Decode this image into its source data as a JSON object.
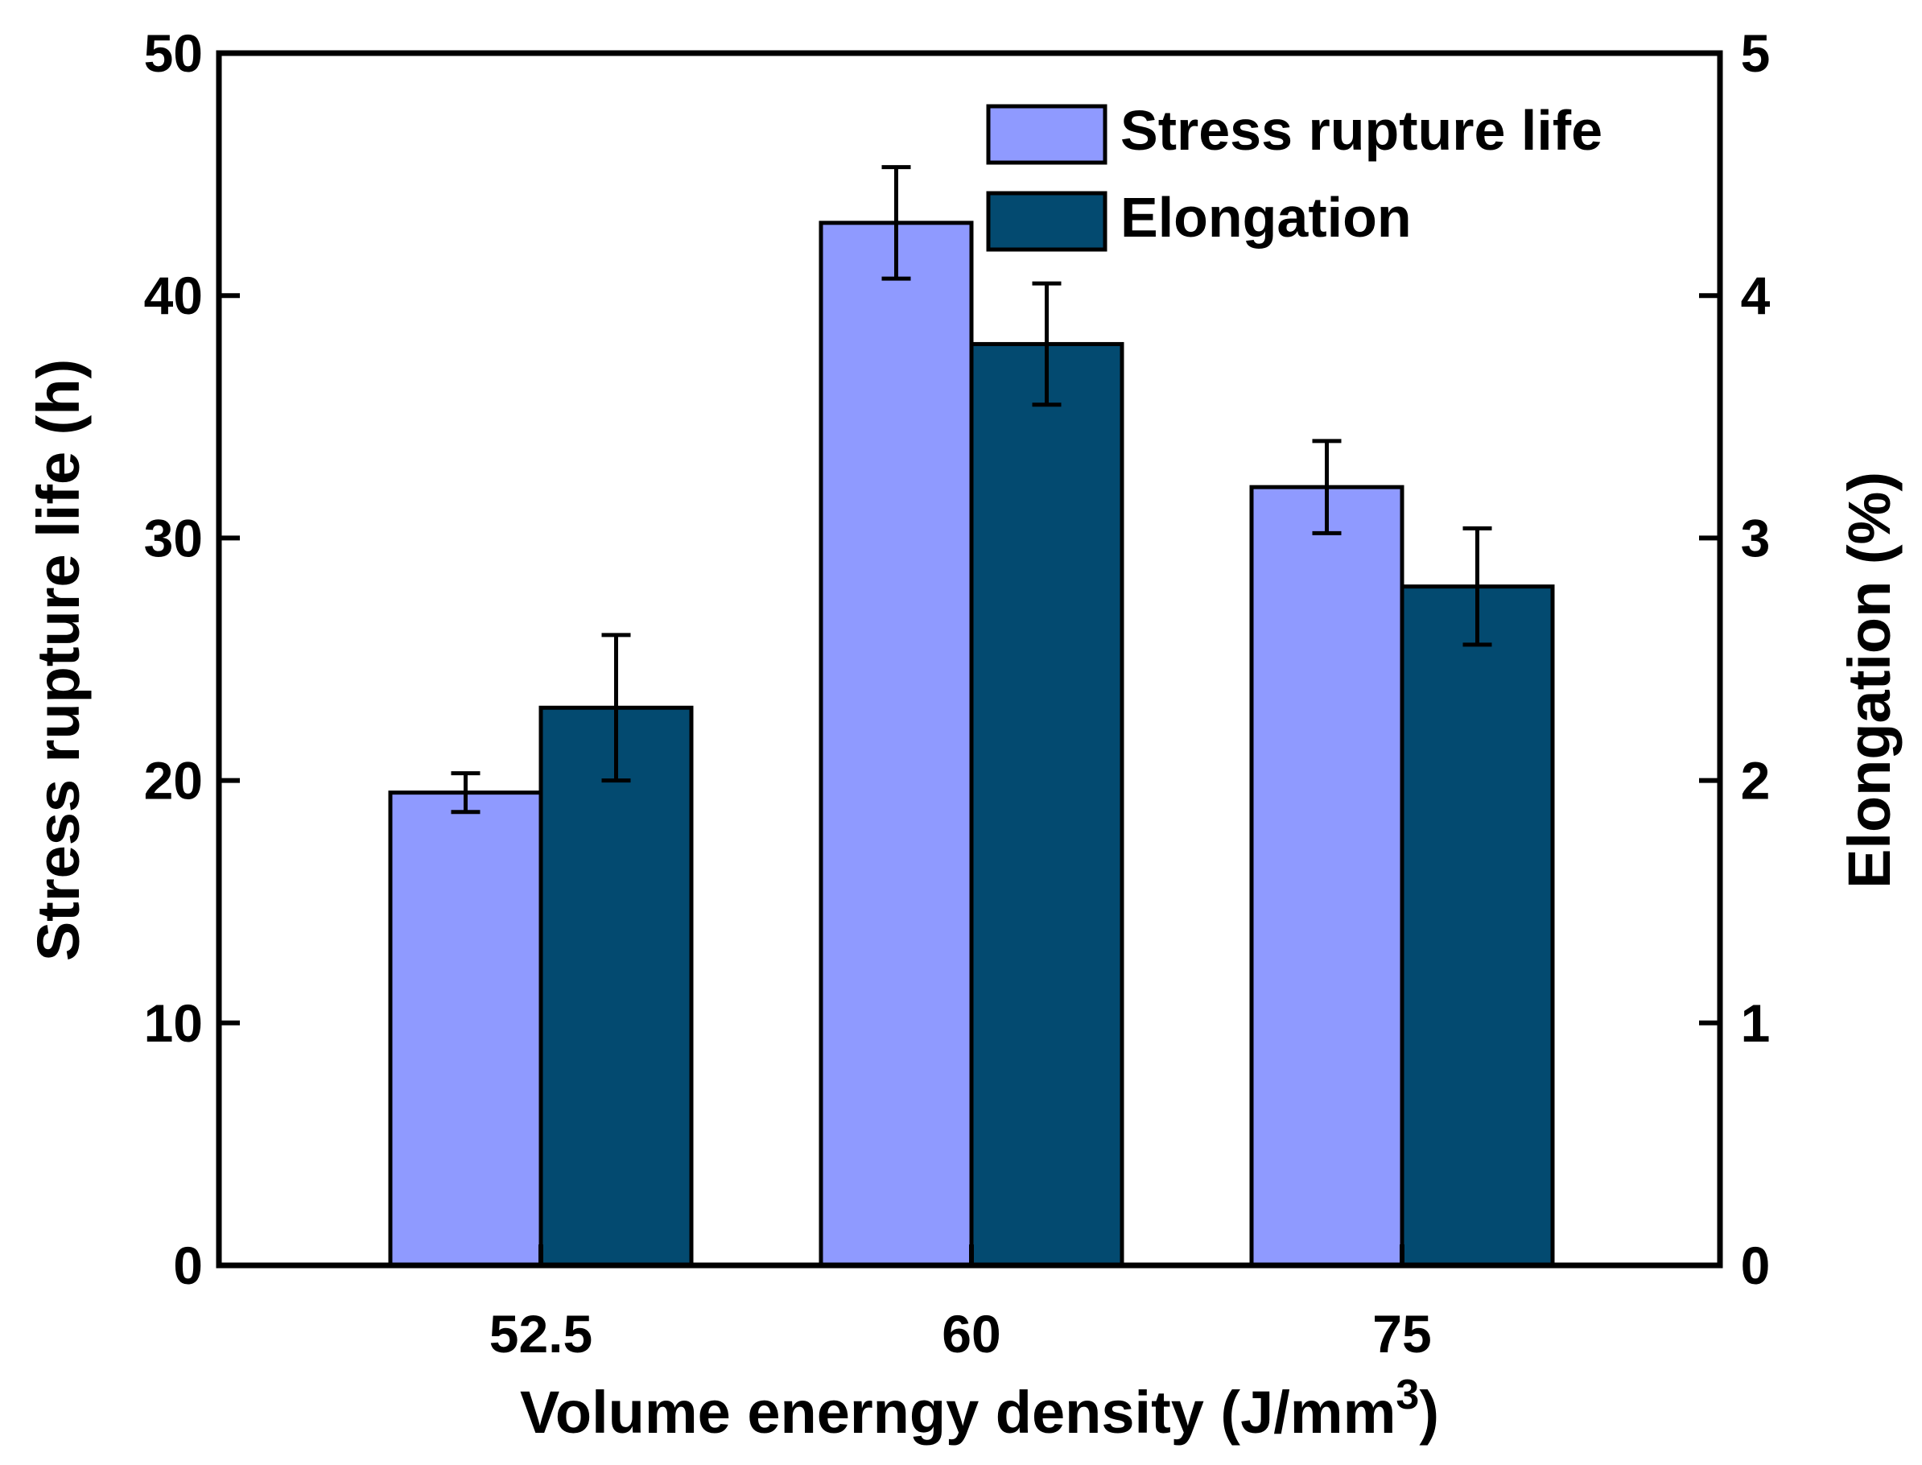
{
  "chart_data": {
    "type": "bar",
    "categories": [
      "52.5",
      "60",
      "75"
    ],
    "series": [
      {
        "name": "Stress rupture life",
        "axis": "left",
        "color": "#8f9aff",
        "values": [
          19.5,
          43.0,
          32.1
        ],
        "errors": [
          0.8,
          2.3,
          1.9
        ]
      },
      {
        "name": "Elongation",
        "axis": "right",
        "color": "#034a70",
        "values": [
          2.3,
          3.8,
          2.8
        ],
        "errors": [
          0.3,
          0.25,
          0.24
        ]
      }
    ],
    "xlabel": {
      "main": "Volume enerngy density (J/mm",
      "superscript": "3",
      "close": ")"
    },
    "ylabel_left": "Stress rupture life (h)",
    "ylabel_right": "Elongation (%)",
    "ylim_left": [
      0,
      50
    ],
    "ylim_right": [
      0,
      5
    ],
    "yticks_left": [
      "0",
      "10",
      "20",
      "30",
      "40",
      "50"
    ],
    "yticks_right": [
      "0",
      "1",
      "2",
      "3",
      "4",
      "5"
    ],
    "grid": false,
    "legend_position": "top-right",
    "legend": [
      "Stress rupture life",
      "Elongation"
    ]
  }
}
